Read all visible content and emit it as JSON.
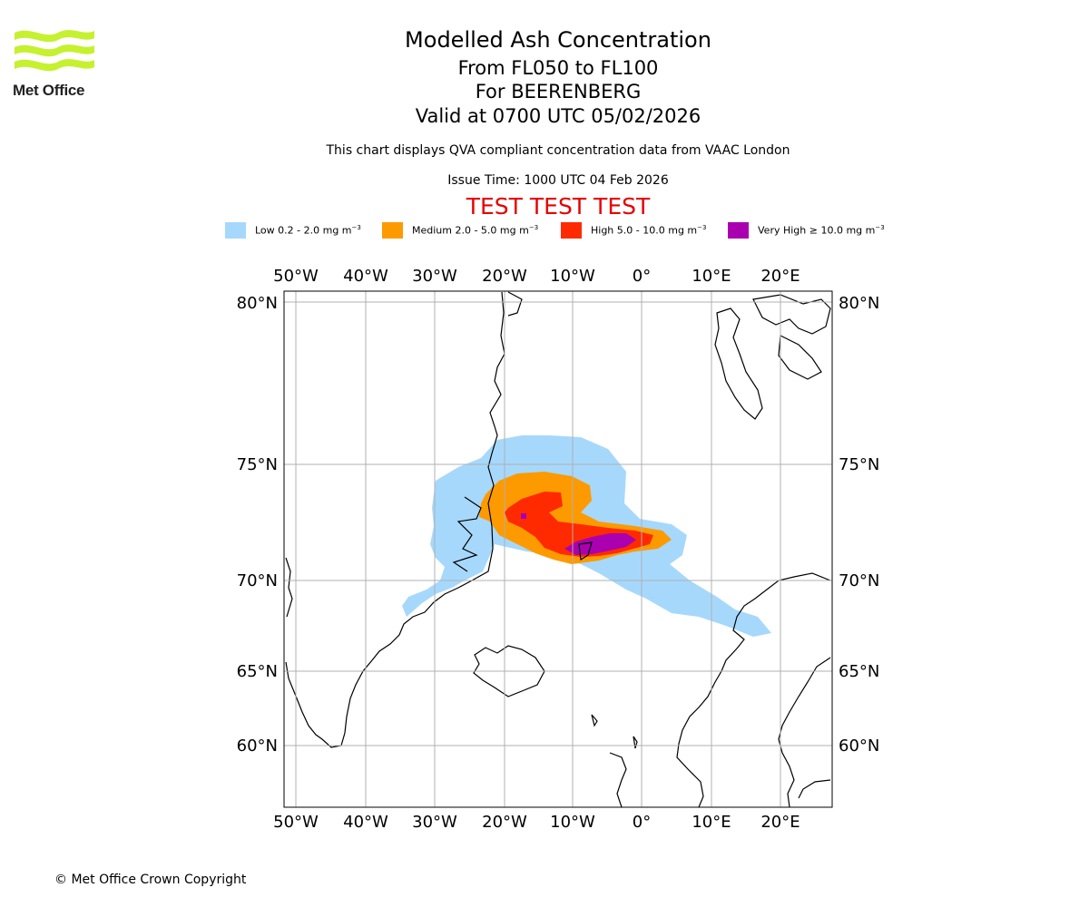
{
  "header": {
    "logo_text": "Met Office",
    "title": "Modelled Ash Concentration",
    "levels": "From FL050 to FL100",
    "volcano": "For BEERENBERG",
    "valid": "Valid at 0700 UTC 05/02/2026",
    "compliance": "This chart displays QVA compliant concentration data from VAAC London",
    "issue": "Issue Time: 1000 UTC 04 Feb 2026",
    "test_banner": "TEST TEST TEST"
  },
  "legend": [
    {
      "label": "Low 0.2 - 2.0 mg m",
      "unit_exp": "−3",
      "color": "#a6d8fc"
    },
    {
      "label": "Medium 2.0 - 5.0 mg m",
      "unit_exp": "−3",
      "color": "#fd9a00"
    },
    {
      "label": "High 5.0 - 10.0 mg m",
      "unit_exp": "−3",
      "color": "#ff2a00"
    },
    {
      "label": "Very High ≥ 10.0 mg m",
      "unit_exp": "−3",
      "color": "#aa00b0"
    }
  ],
  "map": {
    "lon_ticks": [
      "50°W",
      "40°W",
      "30°W",
      "20°W",
      "10°W",
      "0°",
      "10°E",
      "20°E"
    ],
    "lat_ticks": [
      "80°N",
      "75°N",
      "70°N",
      "65°N",
      "60°N"
    ]
  },
  "footer": {
    "copyright": "© Met Office Crown Copyright"
  }
}
